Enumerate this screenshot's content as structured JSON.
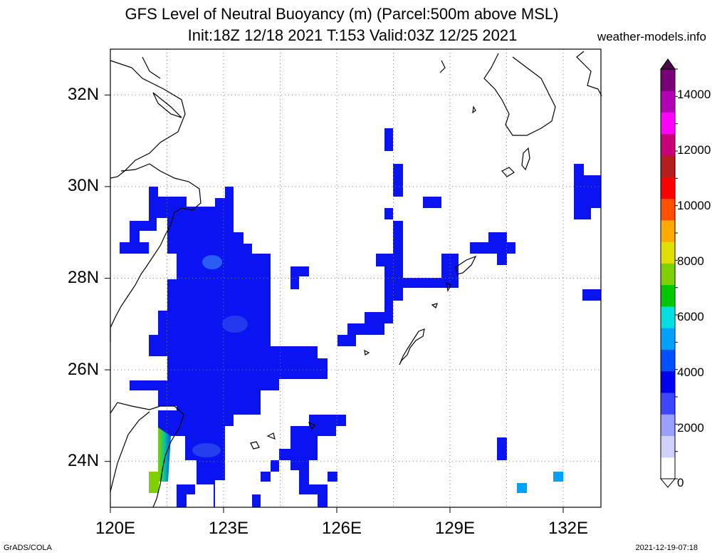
{
  "header": {
    "title_line1": "GFS Level of Neutral Buoyancy (m) (Parcel:500m above MSL)",
    "title_line2": "Init:18Z 12/18 2021 T:153 Valid:03Z 12/25 2021",
    "site": "weather-models.info"
  },
  "map": {
    "lon_range": [
      120,
      133
    ],
    "lat_range": [
      23,
      33
    ],
    "x_ticks": [
      "120E",
      "123E",
      "126E",
      "129E",
      "132E"
    ],
    "y_ticks": [
      "24N",
      "26N",
      "28N",
      "30N",
      "32N"
    ],
    "gridlines": "dotted",
    "colors": {
      "lnb_main": "#0a14f0",
      "lnb_dark": "#1a2ad8",
      "coast": "#000000",
      "frame": "#000000"
    }
  },
  "colorbar": {
    "labels": [
      "0",
      "2000",
      "4000",
      "6000",
      "8000",
      "10000",
      "12000",
      "14000"
    ],
    "range": [
      0,
      15000
    ],
    "colors": [
      "#ffffff",
      "#d0d0ff",
      "#9aa0ff",
      "#3c46ff",
      "#0000f0",
      "#0050ff",
      "#00a0ff",
      "#00e0e0",
      "#00c800",
      "#7ed000",
      "#e0e000",
      "#ffaa00",
      "#ff5000",
      "#ff0000",
      "#b41e1e",
      "#c80078",
      "#ff00ff",
      "#b400b4",
      "#780078"
    ]
  },
  "footer": {
    "left": "GrADS/COLA",
    "right": "2021-12-19-07:18"
  }
}
